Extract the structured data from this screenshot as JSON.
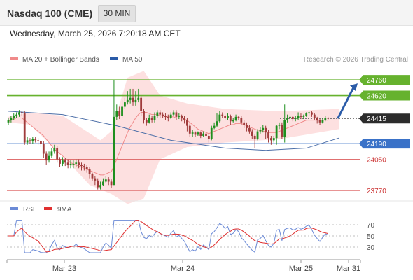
{
  "header": {
    "title": "Nasdaq 100 (CME)",
    "timeframe": "30 MIN"
  },
  "datetime": "Wednesday, March 25, 2026 7:20:18 AM CET",
  "legend": {
    "items": [
      {
        "label": "MA 20 + Bollinger Bands",
        "color": "#f08a8a"
      },
      {
        "label": "MA 50",
        "color": "#2a5ba8"
      }
    ],
    "credit": "Research © 2026 Trading Central"
  },
  "colors": {
    "candle_up": "#1e8f1e",
    "candle_down": "#a03c3c",
    "resistance": "#66b22e",
    "support": "#3a72c8",
    "support2": "#e07070",
    "bollinger_fill": "#fde0e0",
    "ma20": "#f08a8a",
    "ma50": "#4d6fa8",
    "rsi": "#6b8ad6",
    "rsi_ma": "#e03030",
    "arrow": "#2a5ba8"
  },
  "chart_data": [
    {
      "type": "candlestick",
      "title": "Nasdaq 100 (CME)",
      "ylim": [
        23690,
        24880
      ],
      "x_labels": [
        "Mar 23",
        "Mar 24",
        "Mar 25",
        "Mar 31"
      ],
      "levels": [
        {
          "name": "resistance",
          "value": 24760,
          "label": "24760"
        },
        {
          "name": "resistance",
          "value": 24620,
          "label": "24620"
        },
        {
          "name": "last",
          "value": 24415,
          "label": "24415"
        },
        {
          "name": "pivot",
          "value": 24190,
          "label": "24190"
        },
        {
          "name": "support",
          "value": 24050,
          "label": "24050"
        },
        {
          "name": "support",
          "value": 23770,
          "label": "23770"
        }
      ],
      "candles": [
        [
          24380,
          24400,
          24360,
          24420
        ],
        [
          24400,
          24420,
          24380,
          24440
        ],
        [
          24420,
          24440,
          24400,
          24460
        ],
        [
          24440,
          24450,
          24420,
          24470
        ],
        [
          24450,
          24470,
          24430,
          24490
        ],
        [
          24470,
          24460,
          24440,
          24480
        ],
        [
          24460,
          24200,
          24180,
          24480
        ],
        [
          24200,
          24220,
          24180,
          24250
        ],
        [
          24220,
          24210,
          24190,
          24240
        ],
        [
          24210,
          24230,
          24190,
          24250
        ],
        [
          24230,
          24220,
          24200,
          24250
        ],
        [
          24220,
          24210,
          24180,
          24240
        ],
        [
          24210,
          24190,
          24160,
          24220
        ],
        [
          24190,
          24100,
          24060,
          24210
        ],
        [
          24100,
          24040,
          24000,
          24120
        ],
        [
          24040,
          24080,
          24020,
          24120
        ],
        [
          24080,
          24120,
          24060,
          24150
        ],
        [
          24120,
          24150,
          24100,
          24180
        ],
        [
          24150,
          24050,
          24020,
          24170
        ],
        [
          24050,
          24010,
          23980,
          24070
        ],
        [
          24010,
          24040,
          23990,
          24070
        ],
        [
          24040,
          24020,
          23990,
          24060
        ],
        [
          24020,
          24000,
          23970,
          24050
        ],
        [
          24000,
          24010,
          23970,
          24040
        ],
        [
          24010,
          24010,
          23970,
          24040
        ],
        [
          24010,
          24020,
          23980,
          24050
        ],
        [
          24020,
          24000,
          23970,
          24050
        ],
        [
          24000,
          23990,
          23950,
          24020
        ],
        [
          23990,
          23980,
          23950,
          24010
        ],
        [
          23980,
          23960,
          23930,
          24000
        ],
        [
          23960,
          23920,
          23880,
          23980
        ],
        [
          23920,
          23880,
          23860,
          23930
        ],
        [
          23880,
          23860,
          23820,
          23900
        ],
        [
          23860,
          23800,
          23780,
          23880
        ],
        [
          23800,
          23820,
          23780,
          23850
        ],
        [
          23820,
          23850,
          23810,
          23880
        ],
        [
          23850,
          23870,
          23840,
          23900
        ],
        [
          23870,
          23850,
          23820,
          23890
        ],
        [
          23850,
          23820,
          23790,
          23870
        ],
        [
          23820,
          24430,
          23820,
          24760
        ],
        [
          24430,
          24480,
          24400,
          24540
        ],
        [
          24480,
          24440,
          24410,
          24520
        ],
        [
          24440,
          24520,
          24420,
          24580
        ],
        [
          24520,
          24560,
          24500,
          24600
        ],
        [
          24560,
          24580,
          24540,
          24660
        ],
        [
          24580,
          24600,
          24550,
          24680
        ],
        [
          24600,
          24560,
          24530,
          24680
        ],
        [
          24560,
          24580,
          24530,
          24660
        ],
        [
          24580,
          24600,
          24560,
          24680
        ],
        [
          24600,
          24480,
          24440,
          24620
        ],
        [
          24480,
          24400,
          24370,
          24500
        ],
        [
          24400,
          24380,
          24350,
          24420
        ],
        [
          24380,
          24420,
          24370,
          24450
        ],
        [
          24420,
          24400,
          24380,
          24440
        ],
        [
          24400,
          24440,
          24380,
          24470
        ],
        [
          24440,
          24470,
          24420,
          24490
        ],
        [
          24470,
          24450,
          24420,
          24490
        ],
        [
          24450,
          24440,
          24420,
          24470
        ],
        [
          24440,
          24430,
          24400,
          24460
        ],
        [
          24430,
          24420,
          24390,
          24450
        ],
        [
          24420,
          24450,
          24410,
          24470
        ],
        [
          24450,
          24470,
          24440,
          24490
        ],
        [
          24470,
          24430,
          24400,
          24490
        ],
        [
          24430,
          24440,
          24410,
          24460
        ],
        [
          24440,
          24420,
          24390,
          24450
        ],
        [
          24420,
          24400,
          24370,
          24440
        ],
        [
          24400,
          24350,
          24300,
          24420
        ],
        [
          24350,
          24280,
          24250,
          24370
        ],
        [
          24280,
          24290,
          24250,
          24310
        ],
        [
          24290,
          24270,
          24250,
          24300
        ],
        [
          24270,
          24290,
          24260,
          24300
        ],
        [
          24290,
          24260,
          24240,
          24300
        ],
        [
          24260,
          24280,
          24250,
          24300
        ],
        [
          24280,
          24260,
          24240,
          24300
        ],
        [
          24260,
          24230,
          24200,
          24280
        ],
        [
          24230,
          24330,
          24220,
          24350
        ],
        [
          24330,
          24350,
          24320,
          24380
        ],
        [
          24350,
          24390,
          24340,
          24460
        ],
        [
          24390,
          24450,
          24380,
          24480
        ],
        [
          24450,
          24440,
          24420,
          24470
        ],
        [
          24440,
          24420,
          24400,
          24450
        ],
        [
          24420,
          24440,
          24400,
          24460
        ],
        [
          24440,
          24390,
          24360,
          24450
        ],
        [
          24390,
          24400,
          24380,
          24420
        ],
        [
          24400,
          24430,
          24390,
          24450
        ],
        [
          24430,
          24420,
          24400,
          24440
        ],
        [
          24420,
          24380,
          24360,
          24440
        ],
        [
          24380,
          24360,
          24330,
          24400
        ],
        [
          24360,
          24330,
          24300,
          24380
        ],
        [
          24330,
          24300,
          24280,
          24360
        ],
        [
          24300,
          24260,
          24230,
          24320
        ],
        [
          24260,
          24230,
          24150,
          24270
        ],
        [
          24230,
          24300,
          24220,
          24320
        ],
        [
          24300,
          24310,
          24280,
          24340
        ],
        [
          24310,
          24330,
          24290,
          24360
        ],
        [
          24330,
          24290,
          24230,
          24350
        ],
        [
          24290,
          24240,
          24200,
          24310
        ],
        [
          24240,
          24220,
          24180,
          24260
        ],
        [
          24220,
          24240,
          24200,
          24260
        ],
        [
          24240,
          24350,
          24180,
          24360
        ],
        [
          24350,
          24360,
          24320,
          24380
        ],
        [
          24360,
          24250,
          24230,
          24380
        ],
        [
          24250,
          24400,
          24200,
          24540
        ],
        [
          24400,
          24420,
          24380,
          24450
        ],
        [
          24420,
          24430,
          24400,
          24450
        ],
        [
          24430,
          24410,
          24390,
          24440
        ],
        [
          24410,
          24420,
          24390,
          24440
        ],
        [
          24420,
          24440,
          24400,
          24470
        ],
        [
          24440,
          24430,
          24410,
          24460
        ],
        [
          24430,
          24440,
          24410,
          24450
        ],
        [
          24440,
          24460,
          24430,
          24470
        ],
        [
          24460,
          24470,
          24440,
          24480
        ],
        [
          24470,
          24450,
          24430,
          24480
        ],
        [
          24450,
          24420,
          24400,
          24460
        ],
        [
          24420,
          24400,
          24370,
          24430
        ],
        [
          24400,
          24380,
          24360,
          24410
        ],
        [
          24380,
          24400,
          24370,
          24420
        ],
        [
          24400,
          24420,
          24390,
          24440
        ],
        [
          24420,
          24415,
          24400,
          24430
        ]
      ],
      "ma20": [
        24390,
        24400,
        24410,
        24420,
        24420,
        24420,
        24400,
        24380,
        24360,
        24340,
        24320,
        24300,
        24280,
        24260,
        24230,
        24200,
        24170,
        24140,
        24120,
        24100,
        24080,
        24060,
        24040,
        24020,
        24010,
        24000,
        23990,
        23980,
        23970,
        23960,
        23950,
        23940,
        23930,
        23920,
        23910,
        23910,
        23920,
        23930,
        23940,
        23990,
        24050,
        24110,
        24170,
        24230,
        24290,
        24340,
        24380,
        24420,
        24450,
        24470,
        24470,
        24470,
        24460,
        24450,
        24450,
        24450,
        24440,
        24440,
        24430,
        24430,
        24430,
        24430,
        24420,
        24420,
        24420,
        24410,
        24400,
        24380,
        24360,
        24340,
        24320,
        24310,
        24300,
        24290,
        24280,
        24290,
        24300,
        24310,
        24320,
        24330,
        24340,
        24350,
        24360,
        24360,
        24370,
        24370,
        24370,
        24360,
        24350,
        24340,
        24330,
        24320,
        24310,
        24310,
        24300,
        24300,
        24290,
        24290,
        24290,
        24290,
        24300,
        24310,
        24320,
        24330,
        24340,
        24350,
        24360,
        24370,
        24380,
        24390,
        24400,
        24400,
        24400,
        24400,
        24400,
        24400,
        24400,
        24400,
        24400
      ],
      "ma50_points": [
        [
          0,
          24480
        ],
        [
          20,
          24450
        ],
        [
          40,
          24350
        ],
        [
          60,
          24220
        ],
        [
          80,
          24150
        ],
        [
          95,
          24130
        ],
        [
          110,
          24150
        ],
        [
          122,
          24240
        ]
      ],
      "bollinger_upper": [
        [
          0,
          24430
        ],
        [
          8,
          24470
        ],
        [
          20,
          24440
        ],
        [
          34,
          24220
        ],
        [
          38,
          24300
        ],
        [
          44,
          24780
        ],
        [
          50,
          24840
        ],
        [
          56,
          24620
        ],
        [
          66,
          24550
        ],
        [
          80,
          24500
        ],
        [
          100,
          24480
        ],
        [
          122,
          24500
        ]
      ],
      "bollinger_lower": [
        [
          0,
          24380
        ],
        [
          8,
          24360
        ],
        [
          20,
          24080
        ],
        [
          30,
          23820
        ],
        [
          38,
          23740
        ],
        [
          44,
          23650
        ],
        [
          50,
          23700
        ],
        [
          56,
          24050
        ],
        [
          66,
          24160
        ],
        [
          80,
          24200
        ],
        [
          100,
          24230
        ],
        [
          122,
          24320
        ]
      ]
    },
    {
      "type": "line",
      "title": "RSI",
      "series": [
        {
          "name": "RSI",
          "color": "#6b8ad6"
        },
        {
          "name": "9MA",
          "color": "#e03030"
        }
      ],
      "ylim": [
        15,
        80
      ],
      "levels": [
        70,
        50,
        30
      ]
    }
  ]
}
